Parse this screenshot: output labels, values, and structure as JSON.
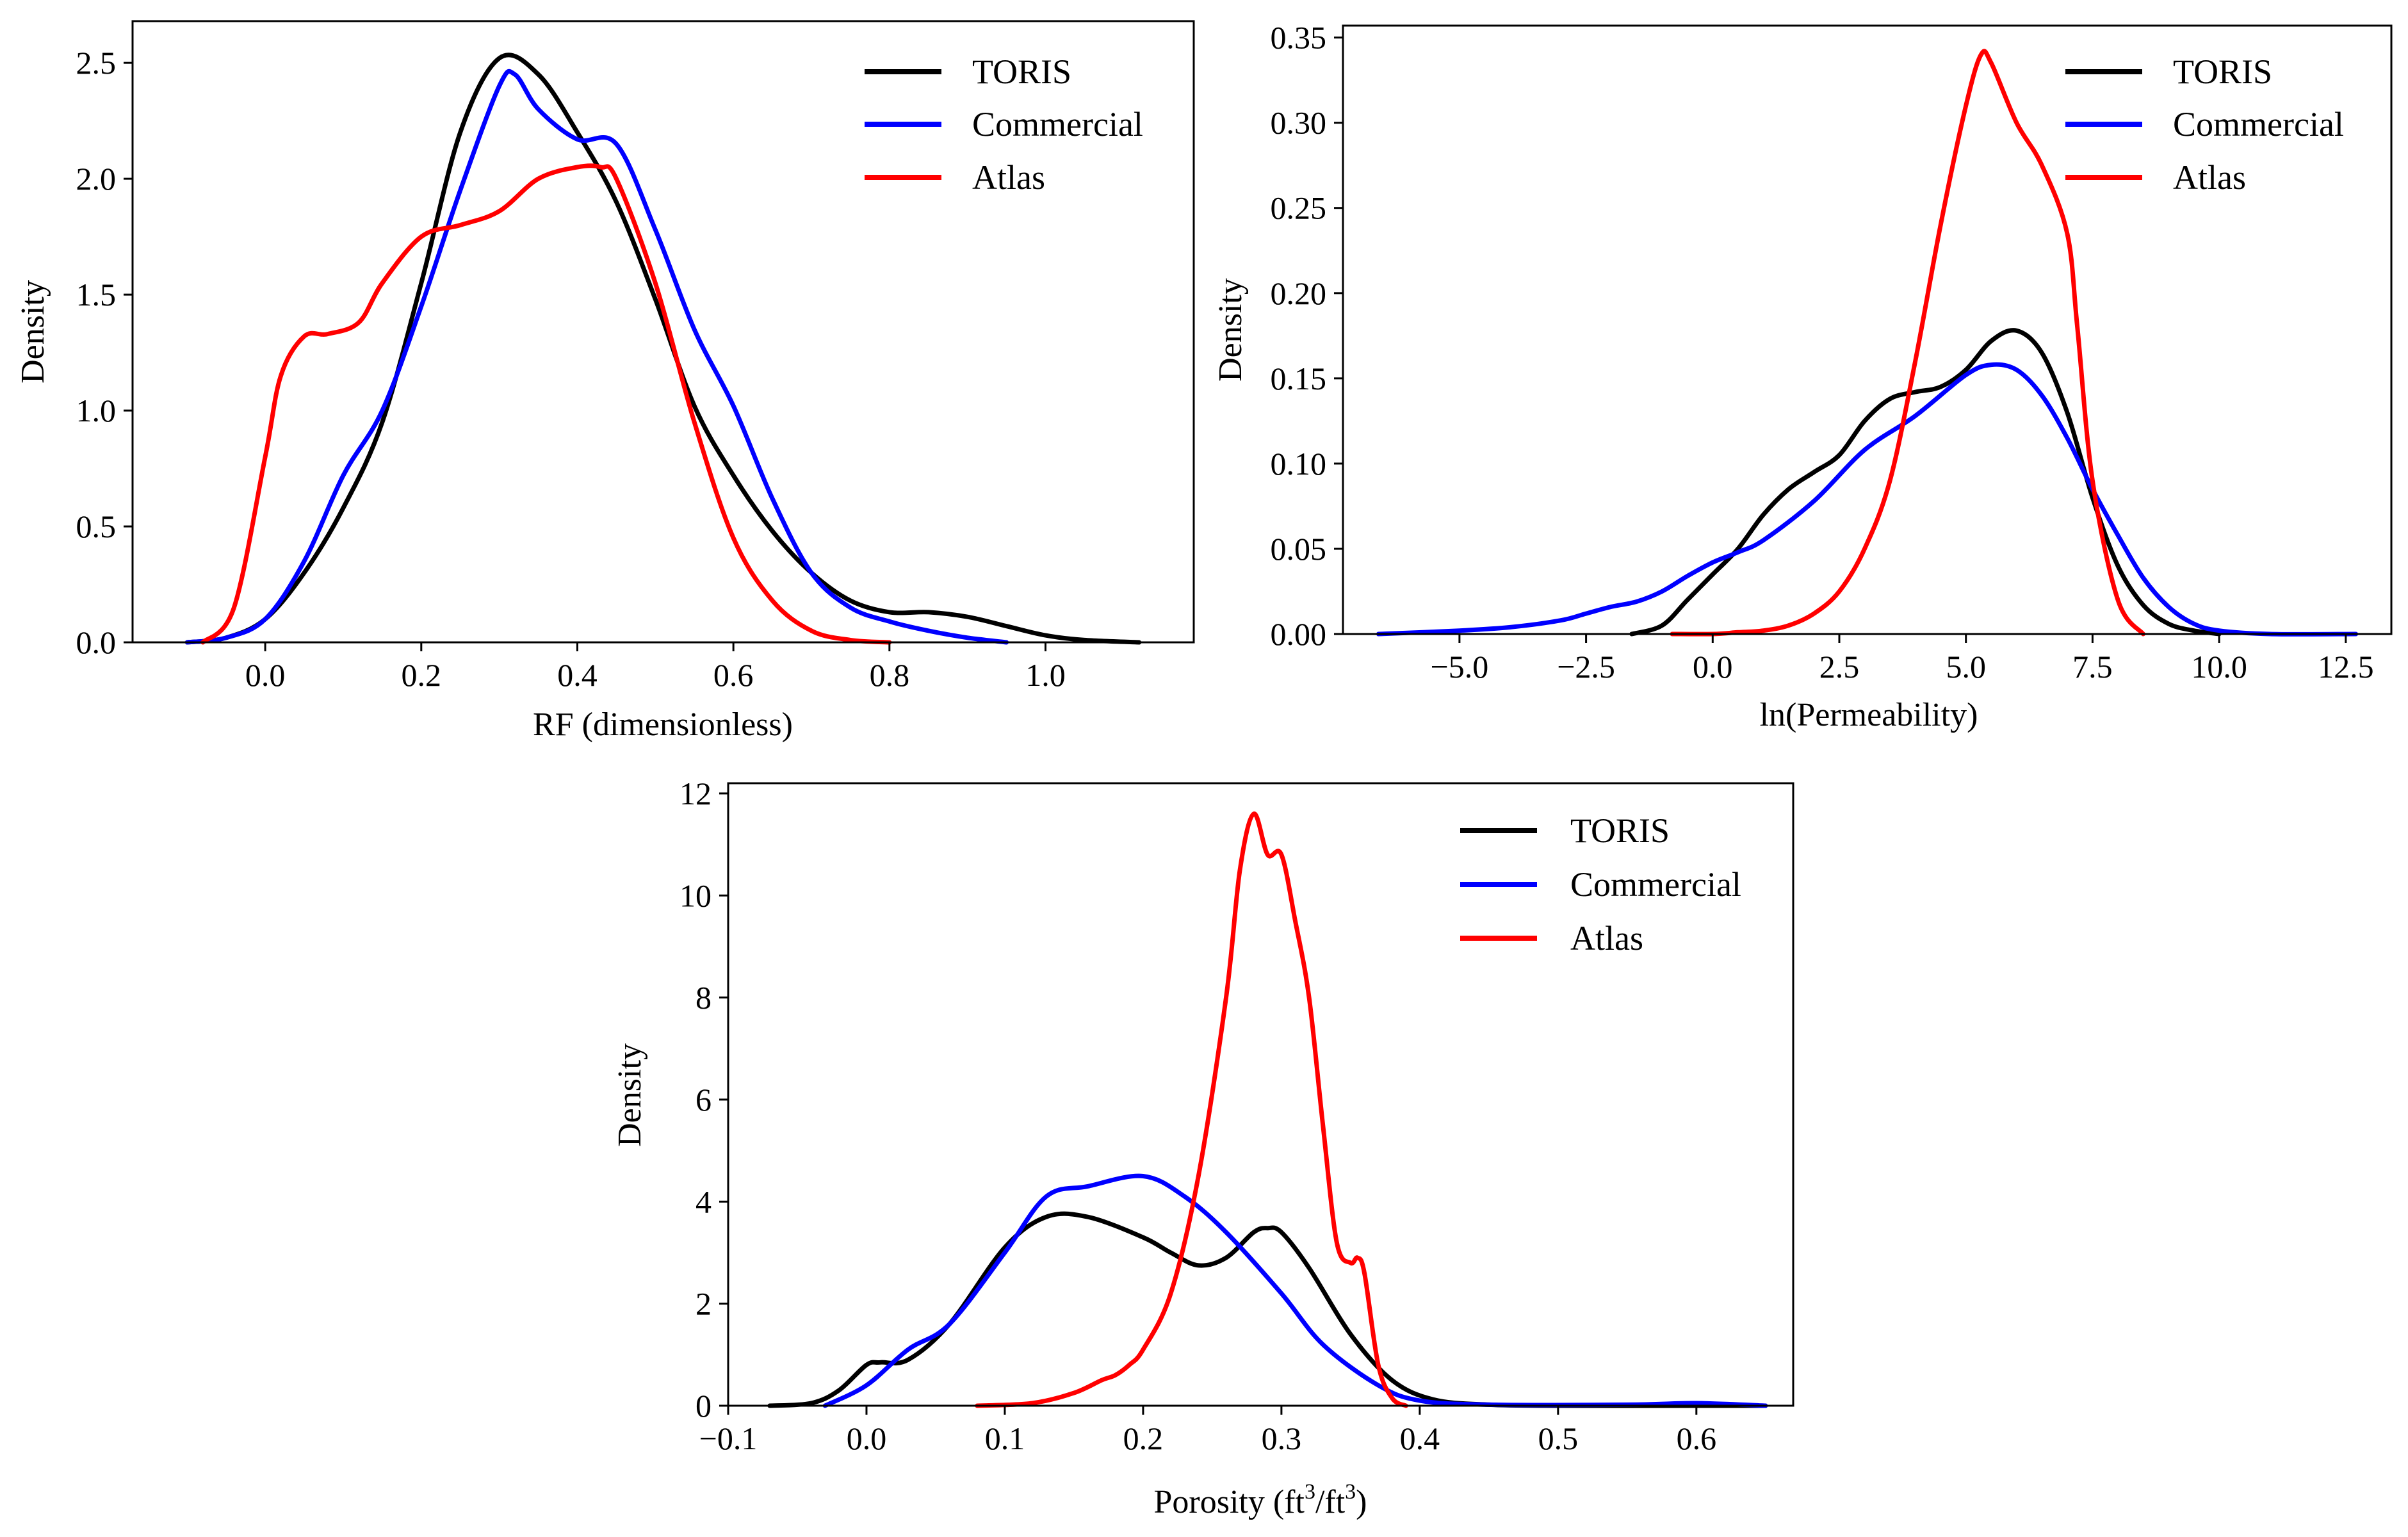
{
  "chart_data": [
    {
      "type": "line",
      "subtype": "kde-density",
      "title": "",
      "xlabel": "RF (dimensionless)",
      "ylabel": "Density",
      "xlim": [
        -0.17,
        1.19
      ],
      "ylim": [
        0,
        2.68
      ],
      "xticks": [
        0.0,
        0.2,
        0.4,
        0.6,
        0.8,
        1.0
      ],
      "xtick_labels": [
        "0.0",
        "0.2",
        "0.4",
        "0.6",
        "0.8",
        "1.0"
      ],
      "yticks": [
        0.0,
        0.5,
        1.0,
        1.5,
        2.0,
        2.5
      ],
      "ytick_labels": [
        "0.0",
        "0.5",
        "1.0",
        "1.5",
        "2.0",
        "2.5"
      ],
      "legend_position": "top-right",
      "series": [
        {
          "name": "TORIS",
          "color": "#000000",
          "x": [
            -0.1,
            -0.05,
            0.0,
            0.05,
            0.1,
            0.15,
            0.2,
            0.25,
            0.3,
            0.35,
            0.4,
            0.45,
            0.5,
            0.55,
            0.6,
            0.65,
            0.7,
            0.75,
            0.8,
            0.85,
            0.9,
            0.95,
            1.0,
            1.05,
            1.12
          ],
          "y": [
            0.0,
            0.02,
            0.1,
            0.3,
            0.58,
            0.95,
            1.55,
            2.2,
            2.52,
            2.45,
            2.2,
            1.9,
            1.48,
            1.02,
            0.72,
            0.48,
            0.3,
            0.18,
            0.13,
            0.13,
            0.11,
            0.07,
            0.03,
            0.01,
            0.0
          ]
        },
        {
          "name": "Commercial",
          "color": "#0000ff",
          "x": [
            -0.1,
            -0.05,
            0.0,
            0.05,
            0.1,
            0.15,
            0.2,
            0.25,
            0.3,
            0.32,
            0.35,
            0.4,
            0.45,
            0.5,
            0.55,
            0.6,
            0.65,
            0.7,
            0.75,
            0.8,
            0.85,
            0.9,
            0.95
          ],
          "y": [
            0.0,
            0.02,
            0.1,
            0.35,
            0.72,
            1.0,
            1.45,
            1.95,
            2.4,
            2.45,
            2.3,
            2.17,
            2.15,
            1.78,
            1.35,
            1.02,
            0.62,
            0.3,
            0.15,
            0.09,
            0.05,
            0.02,
            0.0
          ]
        },
        {
          "name": "Atlas",
          "color": "#ff0000",
          "x": [
            -0.08,
            -0.04,
            0.0,
            0.02,
            0.05,
            0.08,
            0.12,
            0.15,
            0.2,
            0.25,
            0.3,
            0.35,
            0.4,
            0.43,
            0.45,
            0.5,
            0.55,
            0.6,
            0.65,
            0.7,
            0.75,
            0.8
          ],
          "y": [
            0.0,
            0.15,
            0.8,
            1.15,
            1.32,
            1.33,
            1.38,
            1.55,
            1.75,
            1.8,
            1.86,
            2.0,
            2.05,
            2.05,
            2.0,
            1.55,
            0.95,
            0.45,
            0.18,
            0.05,
            0.01,
            0.0
          ]
        }
      ]
    },
    {
      "type": "line",
      "subtype": "kde-density",
      "title": "",
      "xlabel": "ln(Permeability)",
      "ylabel": "Density",
      "xlim": [
        -7.3,
        13.4
      ],
      "ylim": [
        0,
        0.357
      ],
      "xticks": [
        -5.0,
        -2.5,
        0.0,
        2.5,
        5.0,
        7.5,
        10.0,
        12.5
      ],
      "xtick_labels": [
        "−5.0",
        "−2.5",
        "0.0",
        "2.5",
        "5.0",
        "7.5",
        "10.0",
        "12.5"
      ],
      "yticks": [
        0.0,
        0.05,
        0.1,
        0.15,
        0.2,
        0.25,
        0.3,
        0.35
      ],
      "ytick_labels": [
        "0.00",
        "0.05",
        "0.10",
        "0.15",
        "0.20",
        "0.25",
        "0.30",
        "0.35"
      ],
      "legend_position": "top-right",
      "series": [
        {
          "name": "TORIS",
          "color": "#000000",
          "x": [
            -1.6,
            -1.0,
            -0.5,
            0.0,
            0.5,
            1.0,
            1.5,
            2.0,
            2.5,
            3.0,
            3.5,
            4.0,
            4.5,
            5.0,
            5.5,
            6.0,
            6.5,
            7.0,
            7.5,
            8.0,
            8.5,
            9.0,
            9.5,
            10.0
          ],
          "y": [
            0.0,
            0.005,
            0.02,
            0.035,
            0.05,
            0.07,
            0.085,
            0.095,
            0.105,
            0.125,
            0.138,
            0.142,
            0.145,
            0.155,
            0.172,
            0.178,
            0.165,
            0.13,
            0.08,
            0.04,
            0.017,
            0.006,
            0.002,
            0.0
          ]
        },
        {
          "name": "Commercial",
          "color": "#0000ff",
          "x": [
            -6.6,
            -5.0,
            -4.0,
            -3.0,
            -2.5,
            -2.0,
            -1.5,
            -1.0,
            -0.5,
            0.0,
            0.5,
            1.0,
            2.0,
            3.0,
            4.0,
            5.0,
            5.5,
            6.0,
            6.5,
            7.0,
            7.5,
            8.0,
            8.5,
            9.0,
            9.5,
            10.0,
            11.0,
            12.7
          ],
          "y": [
            0.0,
            0.002,
            0.004,
            0.008,
            0.012,
            0.016,
            0.019,
            0.025,
            0.034,
            0.042,
            0.048,
            0.055,
            0.078,
            0.108,
            0.128,
            0.152,
            0.158,
            0.155,
            0.14,
            0.115,
            0.085,
            0.058,
            0.033,
            0.016,
            0.006,
            0.002,
            0.0,
            0.0
          ]
        },
        {
          "name": "Atlas",
          "color": "#ff0000",
          "x": [
            -0.8,
            0.0,
            0.5,
            1.0,
            1.5,
            2.0,
            2.5,
            3.0,
            3.5,
            4.0,
            4.5,
            5.0,
            5.3,
            5.5,
            6.0,
            6.5,
            7.0,
            7.2,
            7.5,
            8.0,
            8.5
          ],
          "y": [
            0.0,
            0.0,
            0.001,
            0.002,
            0.005,
            0.012,
            0.025,
            0.05,
            0.09,
            0.16,
            0.24,
            0.31,
            0.34,
            0.335,
            0.3,
            0.275,
            0.235,
            0.18,
            0.09,
            0.02,
            0.0
          ]
        }
      ]
    },
    {
      "type": "line",
      "subtype": "kde-density",
      "title": "",
      "xlabel": "Porosity (ft",
      "xlabel_sup": "3",
      "xlabel_mid": "/ft",
      "xlabel_sup2": "3",
      "xlabel_end": ")",
      "ylabel": "Density",
      "xlim": [
        -0.1,
        0.67
      ],
      "ylim": [
        0,
        12.2
      ],
      "xticks": [
        -0.1,
        0.0,
        0.1,
        0.2,
        0.3,
        0.4,
        0.5,
        0.6
      ],
      "xtick_labels": [
        "−0.1",
        "0.0",
        "0.1",
        "0.2",
        "0.3",
        "0.4",
        "0.5",
        "0.6"
      ],
      "yticks": [
        0,
        2,
        4,
        6,
        8,
        10,
        12
      ],
      "ytick_labels": [
        "0",
        "2",
        "4",
        "6",
        "8",
        "10",
        "12"
      ],
      "legend_position": "top-right",
      "series": [
        {
          "name": "TORIS",
          "color": "#000000",
          "x": [
            -0.07,
            -0.04,
            -0.02,
            0.0,
            0.01,
            0.03,
            0.06,
            0.1,
            0.13,
            0.16,
            0.2,
            0.22,
            0.24,
            0.26,
            0.28,
            0.29,
            0.3,
            0.32,
            0.35,
            0.38,
            0.41,
            0.45,
            0.5,
            0.6,
            0.65
          ],
          "y": [
            0.0,
            0.05,
            0.3,
            0.8,
            0.85,
            0.9,
            1.6,
            3.1,
            3.7,
            3.7,
            3.3,
            3.0,
            2.75,
            2.9,
            3.4,
            3.48,
            3.4,
            2.7,
            1.4,
            0.5,
            0.12,
            0.02,
            0.0,
            0.0,
            0.0
          ]
        },
        {
          "name": "Commercial",
          "color": "#0000ff",
          "x": [
            -0.03,
            0.0,
            0.03,
            0.06,
            0.1,
            0.13,
            0.16,
            0.2,
            0.23,
            0.26,
            0.3,
            0.33,
            0.37,
            0.4,
            0.45,
            0.55,
            0.6,
            0.65
          ],
          "y": [
            0.0,
            0.4,
            1.1,
            1.6,
            3.0,
            4.1,
            4.3,
            4.5,
            4.1,
            3.4,
            2.2,
            1.2,
            0.4,
            0.1,
            0.02,
            0.02,
            0.05,
            0.0
          ]
        },
        {
          "name": "Atlas",
          "color": "#ff0000",
          "x": [
            0.08,
            0.12,
            0.15,
            0.17,
            0.18,
            0.19,
            0.2,
            0.22,
            0.24,
            0.26,
            0.27,
            0.28,
            0.29,
            0.3,
            0.31,
            0.32,
            0.33,
            0.34,
            0.35,
            0.355,
            0.36,
            0.37,
            0.38,
            0.39
          ],
          "y": [
            0.0,
            0.05,
            0.25,
            0.5,
            0.6,
            0.8,
            1.1,
            2.2,
            4.5,
            8.0,
            10.5,
            11.6,
            10.8,
            10.8,
            9.5,
            8.0,
            5.5,
            3.2,
            2.8,
            2.9,
            2.6,
            0.8,
            0.15,
            0.0
          ]
        }
      ]
    }
  ]
}
